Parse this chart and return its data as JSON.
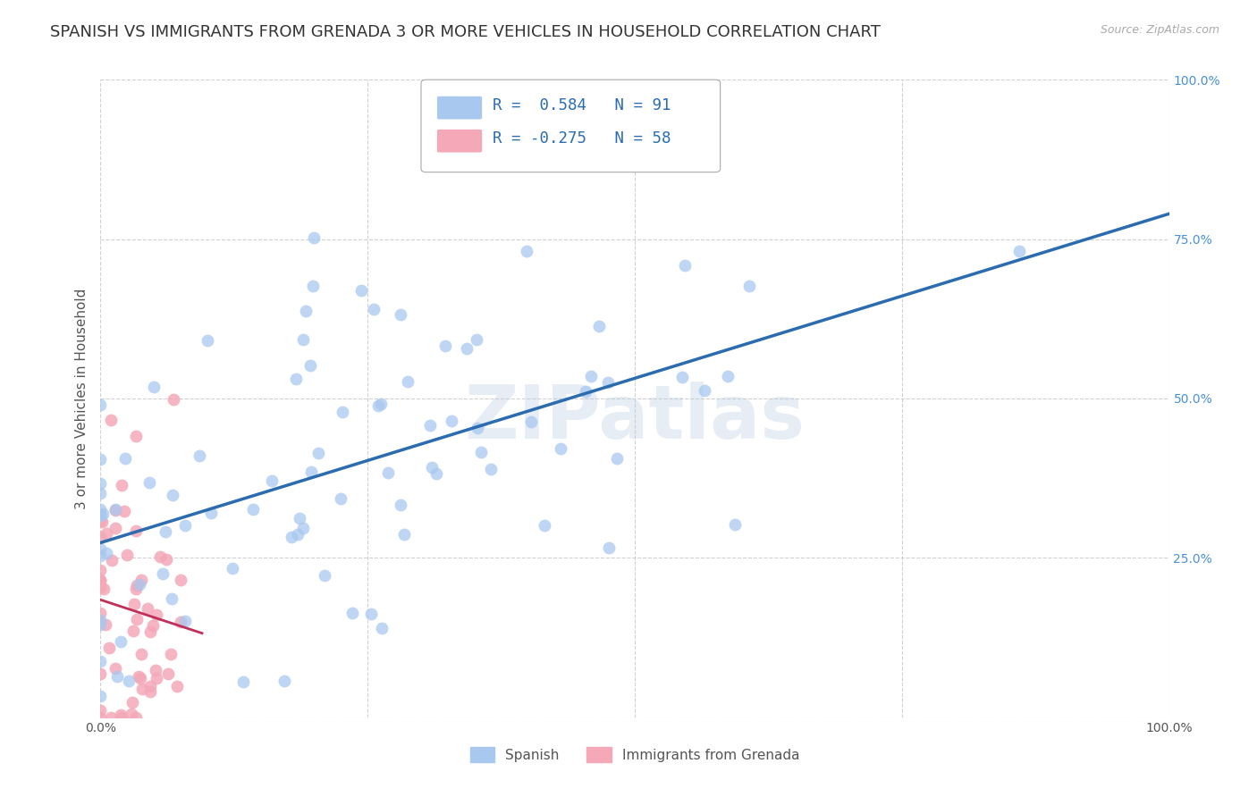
{
  "title": "SPANISH VS IMMIGRANTS FROM GRENADA 3 OR MORE VEHICLES IN HOUSEHOLD CORRELATION CHART",
  "source": "Source: ZipAtlas.com",
  "ylabel": "3 or more Vehicles in Household",
  "legend_blue_label": "Spanish",
  "legend_pink_label": "Immigrants from Grenada",
  "blue_r": 0.584,
  "pink_r": -0.275,
  "blue_n": 91,
  "pink_n": 58,
  "blue_color": "#a8c8f0",
  "blue_line_color": "#2b6cb0",
  "pink_color": "#f4a8b8",
  "pink_line_color": "#c0305a",
  "watermark": "ZIPatlas",
  "background_color": "#ffffff",
  "grid_color": "#cccccc",
  "title_fontsize": 13,
  "axis_label_fontsize": 11,
  "tick_fontsize": 10,
  "legend_fontsize": 12,
  "blue_seed": 77,
  "pink_seed": 55
}
